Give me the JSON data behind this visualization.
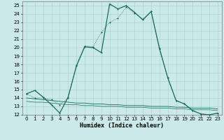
{
  "xlabel": "Humidex (Indice chaleur)",
  "xlim": [
    -0.5,
    23.5
  ],
  "ylim": [
    12,
    25.5
  ],
  "yticks": [
    12,
    13,
    14,
    15,
    16,
    17,
    18,
    19,
    20,
    21,
    22,
    23,
    24,
    25
  ],
  "xticks": [
    0,
    1,
    2,
    3,
    4,
    5,
    6,
    7,
    8,
    9,
    10,
    11,
    12,
    13,
    14,
    15,
    16,
    17,
    18,
    19,
    20,
    21,
    22,
    23
  ],
  "bg_color": "#cce9e9",
  "grid_color": "#aad4d4",
  "line_color": "#1a6b5a",
  "line1_y": [
    14.5,
    14.9,
    14.1,
    13.2,
    12.2,
    14.1,
    17.8,
    20.1,
    20.0,
    19.4,
    25.2,
    24.6,
    25.0,
    24.2,
    23.3,
    24.3,
    19.9,
    16.4,
    13.7,
    13.3,
    12.5,
    12.1,
    12.0,
    12.2
  ],
  "line2_y": [
    14.5,
    14.0,
    14.0,
    13.8,
    13.2,
    14.0,
    17.9,
    20.2,
    20.1,
    21.8,
    23.0,
    23.5,
    24.8,
    24.1,
    23.4,
    24.3,
    19.8,
    16.4,
    13.7,
    13.3,
    12.5,
    12.1,
    12.0,
    12.2
  ],
  "line3_y": [
    14.0,
    13.9,
    13.8,
    13.7,
    13.6,
    13.5,
    13.4,
    13.4,
    13.3,
    13.3,
    13.2,
    13.2,
    13.1,
    13.1,
    13.1,
    13.0,
    13.0,
    13.0,
    12.9,
    12.9,
    12.8,
    12.8,
    12.8,
    12.7
  ],
  "line4_y": [
    13.6,
    13.5,
    13.5,
    13.4,
    13.3,
    13.2,
    13.2,
    13.1,
    13.1,
    13.0,
    13.0,
    13.0,
    12.9,
    12.9,
    12.9,
    12.8,
    12.8,
    12.8,
    12.7,
    12.7,
    12.6,
    12.6,
    12.6,
    12.5
  ]
}
